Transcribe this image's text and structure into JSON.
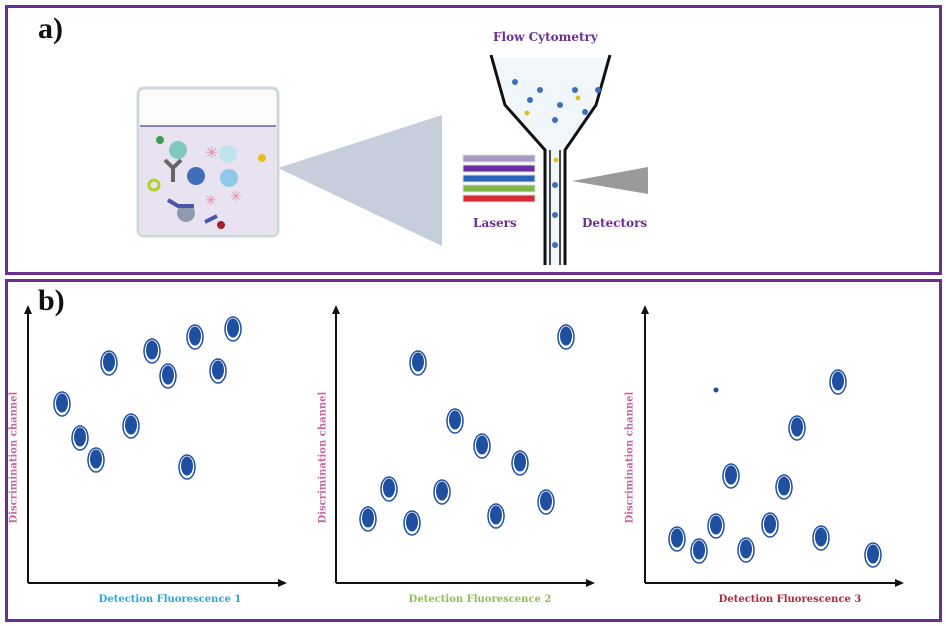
{
  "panel_a": {
    "label": "a)",
    "title": "Flow Cytometry",
    "lasers_label": "Lasers",
    "detectors_label": "Detectors",
    "laser_colors": [
      "#a99ac4",
      "#6a2ea0",
      "#2a63b8",
      "#7fb64a",
      "#d82a38"
    ]
  },
  "panel_b": {
    "label": "b)",
    "plots": [
      {
        "ylabel": "Discrimination channel",
        "xlabel": "Detection Fluorescence 1",
        "xlabel_color": "#2aa9d8"
      },
      {
        "ylabel": "Discrimination channel",
        "xlabel": "Detection Fluorescence 2",
        "xlabel_color": "#8fbf55"
      },
      {
        "ylabel": "Discrimination channel",
        "xlabel": "Detection Fluorescence 3",
        "xlabel_color": "#b0283a"
      }
    ],
    "ylabel_color": "#c466a8",
    "cell_color": "#1f4fa0"
  },
  "colors": {
    "frame": "#6b2f92",
    "text_purple": "#6b2f92"
  }
}
